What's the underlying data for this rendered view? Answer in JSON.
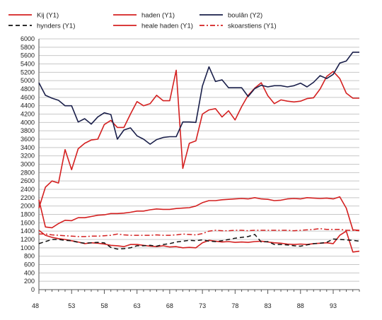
{
  "chart_data": {
    "type": "line",
    "title": "",
    "xlabel": "",
    "ylabel": "",
    "x_range": [
      48,
      97
    ],
    "ylim": [
      0,
      6000
    ],
    "y_ticks": [
      0,
      200,
      400,
      600,
      800,
      1000,
      1200,
      1400,
      1600,
      1800,
      2000,
      2200,
      2400,
      2600,
      2800,
      3000,
      3200,
      3400,
      3600,
      3800,
      4000,
      4200,
      4400,
      4600,
      4800,
      5000,
      5200,
      5400,
      5600,
      5800,
      6000
    ],
    "x_tick_labels": [
      "48",
      "53",
      "58",
      "63",
      "68",
      "73",
      "78",
      "83",
      "88",
      "93"
    ],
    "x_tick_values": [
      48,
      53,
      58,
      63,
      68,
      73,
      78,
      83,
      88,
      93
    ],
    "grid": "horizontal",
    "legend_position": "top",
    "series": [
      {
        "name": "Kij (Y1)",
        "color": "#d42020",
        "dash": "solid",
        "x": [
          48,
          49,
          50,
          51,
          52,
          53,
          54,
          55,
          56,
          57,
          58,
          59,
          60,
          61,
          62,
          63,
          64,
          65,
          66,
          67,
          68,
          69,
          70,
          71,
          72,
          73,
          74,
          75,
          76,
          77,
          78,
          79,
          80,
          81,
          82,
          83,
          84,
          85,
          86,
          87,
          88,
          89,
          90,
          91,
          92,
          93,
          94,
          95,
          96,
          97
        ],
        "values": [
          1950,
          2450,
          2600,
          2550,
          3350,
          2870,
          3370,
          3500,
          3580,
          3600,
          3950,
          4050,
          3880,
          3880,
          4200,
          4500,
          4400,
          4450,
          4650,
          4520,
          4520,
          5250,
          2900,
          3500,
          3560,
          4200,
          4300,
          4330,
          4130,
          4280,
          4060,
          4380,
          4650,
          4820,
          4950,
          4640,
          4450,
          4540,
          4510,
          4490,
          4510,
          4570,
          4590,
          4800,
          5100,
          5220,
          5050,
          4700,
          4580,
          4580
        ]
      },
      {
        "name": "haden (Y1)",
        "color": "#d42020",
        "dash": "solid",
        "x": [
          48,
          49,
          50,
          51,
          52,
          53,
          54,
          55,
          56,
          57,
          58,
          59,
          60,
          61,
          62,
          63,
          64,
          65,
          66,
          67,
          68,
          69,
          70,
          71,
          72,
          73,
          74,
          75,
          76,
          77,
          78,
          79,
          80,
          81,
          82,
          83,
          84,
          85,
          86,
          87,
          88,
          89,
          90,
          91,
          92,
          93,
          94,
          95,
          96,
          97
        ],
        "values": [
          1420,
          1300,
          1250,
          1220,
          1200,
          1170,
          1140,
          1100,
          1120,
          1110,
          1090,
          1060,
          1050,
          1030,
          1080,
          1080,
          1060,
          1040,
          1030,
          1050,
          1020,
          1030,
          1000,
          1010,
          1000,
          1120,
          1180,
          1160,
          1140,
          1150,
          1130,
          1140,
          1130,
          1150,
          1160,
          1140,
          1120,
          1110,
          1090,
          1080,
          1090,
          1080,
          1100,
          1110,
          1120,
          1100,
          1300,
          1400,
          900,
          920
        ]
      },
      {
        "name": "boulân (Y2)",
        "color": "#1a1f4a",
        "dash": "solid",
        "x": [
          48,
          49,
          50,
          51,
          52,
          53,
          54,
          55,
          56,
          57,
          58,
          59,
          60,
          61,
          62,
          63,
          64,
          65,
          66,
          67,
          68,
          69,
          70,
          71,
          72,
          73,
          74,
          75,
          76,
          77,
          78,
          79,
          80,
          81,
          82,
          83,
          84,
          85,
          86,
          87,
          88,
          89,
          90,
          91,
          92,
          93,
          94,
          95,
          96,
          97
        ],
        "values": [
          4950,
          4650,
          4580,
          4530,
          4400,
          4400,
          4010,
          4090,
          3960,
          4130,
          4230,
          4190,
          3600,
          3820,
          3870,
          3680,
          3600,
          3480,
          3590,
          3640,
          3660,
          3660,
          4010,
          4010,
          4000,
          4870,
          5330,
          4980,
          5020,
          4830,
          4830,
          4830,
          4620,
          4810,
          4890,
          4850,
          4880,
          4880,
          4850,
          4880,
          4940,
          4850,
          4960,
          5120,
          5050,
          5150,
          5420,
          5470,
          5680,
          5680
        ]
      },
      {
        "name": "hynders (Y1)",
        "color": "#111111",
        "dash": "dashed",
        "x": [
          48,
          49,
          50,
          51,
          52,
          53,
          54,
          55,
          56,
          57,
          58,
          59,
          60,
          61,
          62,
          63,
          64,
          65,
          66,
          67,
          68,
          69,
          70,
          71,
          72,
          73,
          74,
          75,
          76,
          77,
          78,
          79,
          80,
          81,
          82,
          83,
          84,
          85,
          86,
          87,
          88,
          89,
          90,
          91,
          92,
          93,
          94,
          95,
          96,
          97
        ],
        "values": [
          1100,
          1150,
          1200,
          1200,
          1180,
          1170,
          1130,
          1110,
          1120,
          1130,
          1120,
          1010,
          970,
          980,
          1000,
          1050,
          1050,
          1060,
          1040,
          1080,
          1100,
          1140,
          1160,
          1180,
          1170,
          1190,
          1160,
          1150,
          1170,
          1200,
          1230,
          1250,
          1270,
          1320,
          1140,
          1150,
          1080,
          1080,
          1070,
          1050,
          1040,
          1070,
          1100,
          1110,
          1130,
          1210,
          1200,
          1190,
          1180,
          1160
        ]
      },
      {
        "name": "heale haden (Y1)",
        "color": "#d42020",
        "dash": "solid",
        "x": [
          48,
          49,
          50,
          51,
          52,
          53,
          54,
          55,
          56,
          57,
          58,
          59,
          60,
          61,
          62,
          63,
          64,
          65,
          66,
          67,
          68,
          69,
          70,
          71,
          72,
          73,
          74,
          75,
          76,
          77,
          78,
          79,
          80,
          81,
          82,
          83,
          84,
          85,
          86,
          87,
          88,
          89,
          90,
          91,
          92,
          93,
          94,
          95,
          96,
          97
        ],
        "values": [
          2150,
          1500,
          1480,
          1580,
          1660,
          1650,
          1720,
          1720,
          1750,
          1780,
          1790,
          1820,
          1820,
          1830,
          1850,
          1880,
          1880,
          1910,
          1930,
          1920,
          1920,
          1940,
          1950,
          1960,
          2000,
          2080,
          2130,
          2130,
          2150,
          2160,
          2170,
          2180,
          2170,
          2200,
          2170,
          2160,
          2130,
          2140,
          2170,
          2180,
          2170,
          2200,
          2190,
          2180,
          2190,
          2170,
          2220,
          1950,
          1430,
          1420
        ]
      },
      {
        "name": "skoarstiens (Y1)",
        "color": "#d42020",
        "dash": "dashdot",
        "x": [
          48,
          49,
          50,
          51,
          52,
          53,
          54,
          55,
          56,
          57,
          58,
          59,
          60,
          61,
          62,
          63,
          64,
          65,
          66,
          67,
          68,
          69,
          70,
          71,
          72,
          73,
          74,
          75,
          76,
          77,
          78,
          79,
          80,
          81,
          82,
          83,
          84,
          85,
          86,
          87,
          88,
          89,
          90,
          91,
          92,
          93,
          94,
          95,
          96,
          97
        ],
        "values": [
          1330,
          1330,
          1310,
          1300,
          1290,
          1280,
          1270,
          1270,
          1280,
          1280,
          1290,
          1300,
          1330,
          1310,
          1300,
          1300,
          1300,
          1300,
          1310,
          1300,
          1300,
          1310,
          1330,
          1320,
          1310,
          1340,
          1400,
          1420,
          1410,
          1410,
          1420,
          1420,
          1410,
          1420,
          1420,
          1420,
          1420,
          1420,
          1420,
          1410,
          1420,
          1430,
          1440,
          1460,
          1440,
          1440,
          1440,
          1420,
          1420,
          1410
        ]
      }
    ]
  }
}
